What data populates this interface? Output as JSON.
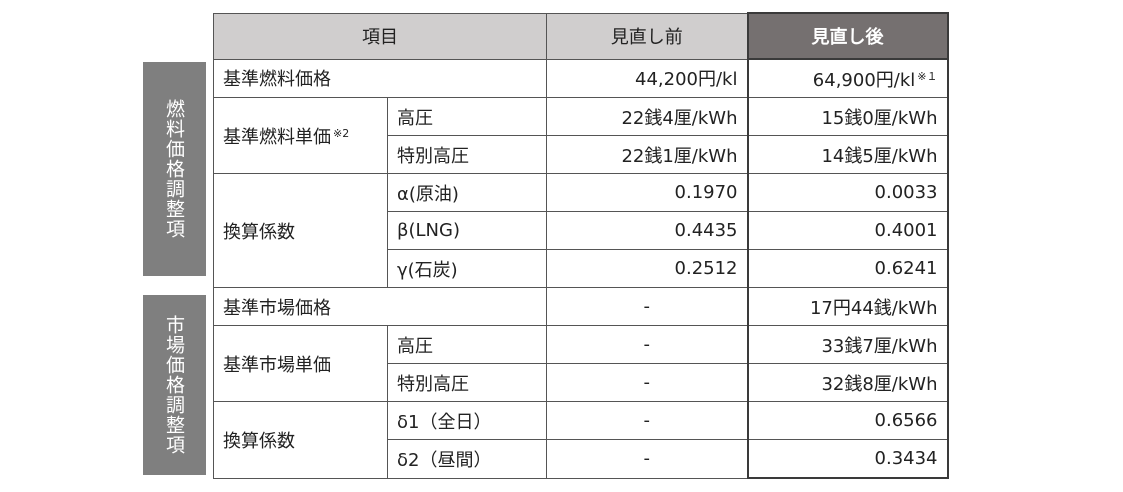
{
  "side_labels": [
    "燃料価格調整項",
    "市場価格調整項"
  ],
  "table": {
    "header": [
      "項目",
      "見直し前",
      "見直し後"
    ],
    "groups": [
      {
        "item": "基準燃料価格",
        "before": "44,200円/kl",
        "after": "64,900円/kl",
        "after_note": "※１"
      },
      {
        "item": "基準燃料単価",
        "item_note": "※2",
        "rows": [
          {
            "label": "高圧",
            "before": "22銭4厘/kWh",
            "after": "15銭0厘/kWh"
          },
          {
            "label": "特別高圧",
            "before": "22銭1厘/kWh",
            "after": "14銭5厘/kWh"
          }
        ]
      },
      {
        "item": "換算係数",
        "rows": [
          {
            "label": "α(原油)",
            "before": "0.1970",
            "after": "0.0033"
          },
          {
            "label": "β(LNG)",
            "before": "0.4435",
            "after": "0.4001"
          },
          {
            "label": "γ(石炭)",
            "before": "0.2512",
            "after": "0.6241"
          }
        ]
      },
      {
        "item": "基準市場価格",
        "before": "-",
        "after": "17円44銭/kWh"
      },
      {
        "item": "基準市場単価",
        "rows": [
          {
            "label": "高圧",
            "before": "-",
            "after": "33銭7厘/kWh"
          },
          {
            "label": "特別高圧",
            "before": "-",
            "after": "32銭8厘/kWh"
          }
        ]
      },
      {
        "item": "換算係数",
        "rows": [
          {
            "label": "δ1（全日）",
            "before": "-",
            "after": "0.6566"
          },
          {
            "label": "δ2（昼間）",
            "before": "-",
            "after": "0.3434"
          }
        ]
      }
    ]
  }
}
